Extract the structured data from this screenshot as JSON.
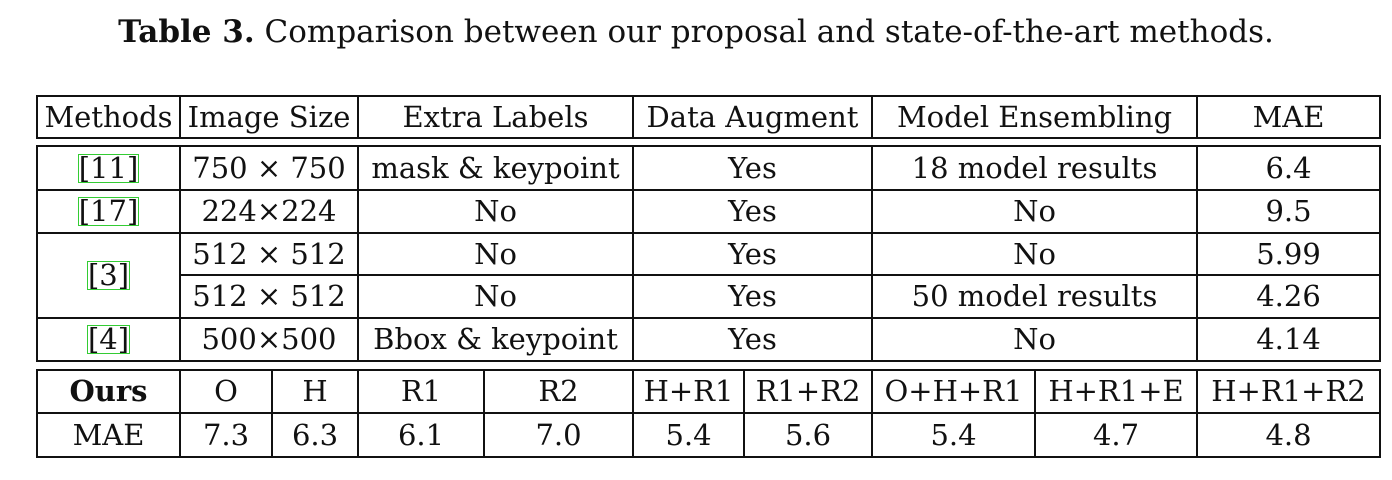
{
  "caption": {
    "lead": "Table 3.",
    "text": "Comparison between our proposal and state-of-the-art methods."
  },
  "table1": {
    "headers": [
      "Methods",
      "Image Size",
      "Extra Labels",
      "Data Augment",
      "Model Ensembling",
      "MAE"
    ],
    "rows": [
      {
        "method": "[11]",
        "image_size": "750 × 750",
        "extra_labels": "mask & keypoint",
        "data_augment": "Yes",
        "model_ensembling": "18 model results",
        "mae": "6.4"
      },
      {
        "method": "[17]",
        "image_size": "224×224",
        "extra_labels": "No",
        "data_augment": "Yes",
        "model_ensembling": "No",
        "mae": "9.5"
      },
      {
        "method": "[3]",
        "image_size": "512 × 512",
        "extra_labels": "No",
        "data_augment": "Yes",
        "model_ensembling": "No",
        "mae": "5.99"
      },
      {
        "method": "",
        "image_size": "512 × 512",
        "extra_labels": "No",
        "data_augment": "Yes",
        "model_ensembling": "50 model results",
        "mae": "4.26"
      },
      {
        "method": "[4]",
        "image_size": "500×500",
        "extra_labels": "Bbox & keypoint",
        "data_augment": "Yes",
        "model_ensembling": "No",
        "mae": "4.14"
      }
    ]
  },
  "table2": {
    "headers": [
      "Ours",
      "O",
      "H",
      "R1",
      "R2",
      "H+R1",
      "R1+R2",
      "O+H+R1",
      "H+R1+E",
      "H+R1+R2"
    ],
    "row_label": "MAE",
    "values": [
      "7.3",
      "6.3",
      "6.1",
      "7.0",
      "5.4",
      "5.6",
      "5.4",
      "4.7",
      "4.8"
    ]
  }
}
